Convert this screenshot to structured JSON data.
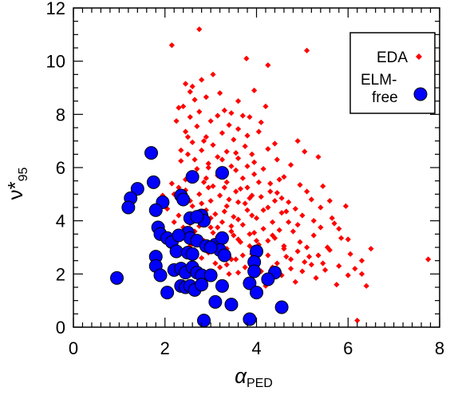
{
  "chart_data": {
    "type": "scatter",
    "xlabel": "α",
    "xlabel_sub": "PED",
    "ylabel": "ν*",
    "ylabel_sub": "95",
    "xlim": [
      0,
      8
    ],
    "ylim": [
      0,
      12
    ],
    "xticks": [
      0,
      2,
      4,
      6,
      8
    ],
    "yticks": [
      0,
      2,
      4,
      6,
      8,
      10,
      12
    ],
    "grid": false,
    "legend_position": "top-right",
    "series": [
      {
        "name": "EDA",
        "marker": "diamond",
        "color": "#ff0000",
        "points": [
          [
            2.15,
            10.6
          ],
          [
            2.75,
            11.2
          ],
          [
            3.78,
            10.1
          ],
          [
            5.1,
            10.4
          ],
          [
            4.25,
            9.85
          ],
          [
            3.05,
            9.5
          ],
          [
            2.45,
            9.15
          ],
          [
            2.6,
            9.05
          ],
          [
            2.55,
            8.85
          ],
          [
            3.2,
            8.8
          ],
          [
            2.9,
            8.65
          ],
          [
            3.6,
            8.5
          ],
          [
            2.3,
            8.25
          ],
          [
            2.4,
            8.3
          ],
          [
            2.75,
            8.1
          ],
          [
            3.45,
            8.05
          ],
          [
            3.15,
            7.95
          ],
          [
            2.55,
            7.9
          ],
          [
            3.85,
            7.9
          ],
          [
            2.25,
            7.75
          ],
          [
            3.0,
            7.75
          ],
          [
            3.4,
            7.6
          ],
          [
            2.7,
            7.55
          ],
          [
            3.6,
            7.45
          ],
          [
            2.45,
            7.35
          ],
          [
            3.25,
            7.3
          ],
          [
            4.05,
            7.35
          ],
          [
            3.8,
            7.2
          ],
          [
            2.9,
            7.15
          ],
          [
            3.5,
            7.05
          ],
          [
            2.6,
            6.95
          ],
          [
            4.9,
            7.0
          ],
          [
            3.05,
            6.85
          ],
          [
            3.75,
            6.8
          ],
          [
            2.8,
            6.65
          ],
          [
            3.35,
            6.6
          ],
          [
            4.25,
            6.7
          ],
          [
            2.5,
            6.5
          ],
          [
            3.9,
            6.5
          ],
          [
            5.05,
            6.6
          ],
          [
            3.15,
            6.4
          ],
          [
            3.6,
            6.35
          ],
          [
            2.35,
            6.25
          ],
          [
            4.45,
            6.3
          ],
          [
            2.95,
            6.15
          ],
          [
            3.45,
            6.05
          ],
          [
            5.35,
            6.4
          ],
          [
            2.7,
            5.95
          ],
          [
            4.15,
            5.95
          ],
          [
            3.25,
            5.85
          ],
          [
            3.95,
            5.75
          ],
          [
            2.55,
            5.7
          ],
          [
            4.6,
            5.65
          ],
          [
            3.7,
            5.6
          ],
          [
            2.85,
            5.45
          ],
          [
            3.35,
            5.45
          ],
          [
            4.3,
            5.4
          ],
          [
            3.05,
            5.3
          ],
          [
            3.8,
            5.25
          ],
          [
            4.95,
            5.35
          ],
          [
            2.45,
            5.15
          ],
          [
            3.55,
            5.1
          ],
          [
            4.45,
            5.05
          ],
          [
            2.75,
            5.0
          ],
          [
            3.2,
            4.95
          ],
          [
            4.1,
            4.9
          ],
          [
            3.9,
            4.95
          ],
          [
            2.35,
            4.8
          ],
          [
            5.2,
            4.8
          ],
          [
            3.0,
            4.75
          ],
          [
            3.6,
            4.7
          ],
          [
            4.7,
            4.7
          ],
          [
            2.6,
            4.55
          ],
          [
            3.35,
            4.55
          ],
          [
            4.25,
            4.5
          ],
          [
            5.4,
            4.5
          ],
          [
            2.9,
            4.4
          ],
          [
            3.8,
            4.4
          ],
          [
            3.1,
            4.25
          ],
          [
            4.55,
            4.3
          ],
          [
            2.5,
            4.15
          ],
          [
            3.5,
            4.15
          ],
          [
            4.0,
            4.1
          ],
          [
            5.0,
            4.2
          ],
          [
            2.75,
            4.0
          ],
          [
            3.25,
            3.95
          ],
          [
            4.35,
            3.95
          ],
          [
            3.7,
            3.85
          ],
          [
            5.7,
            3.9
          ],
          [
            2.4,
            3.75
          ],
          [
            3.0,
            3.75
          ],
          [
            4.15,
            3.7
          ],
          [
            2.65,
            3.6
          ],
          [
            3.45,
            3.6
          ],
          [
            4.8,
            3.6
          ],
          [
            3.85,
            3.5
          ],
          [
            5.25,
            3.45
          ],
          [
            3.15,
            3.4
          ],
          [
            4.4,
            3.35
          ],
          [
            2.85,
            3.25
          ],
          [
            3.65,
            3.2
          ],
          [
            4.95,
            3.2
          ],
          [
            2.55,
            3.05
          ],
          [
            4.05,
            3.1
          ],
          [
            3.35,
            2.95
          ],
          [
            4.6,
            2.95
          ],
          [
            5.6,
            2.9
          ],
          [
            2.95,
            2.8
          ],
          [
            3.9,
            2.75
          ],
          [
            4.25,
            2.7
          ],
          [
            5.15,
            2.65
          ],
          [
            3.55,
            2.55
          ],
          [
            4.75,
            2.55
          ],
          [
            3.1,
            2.4
          ],
          [
            4.45,
            2.4
          ],
          [
            5.45,
            2.4
          ],
          [
            3.75,
            2.25
          ],
          [
            5.8,
            2.3
          ],
          [
            2.7,
            2.15
          ],
          [
            4.1,
            2.1
          ],
          [
            5.0,
            2.1
          ],
          [
            6.05,
            2.75
          ],
          [
            3.4,
            2.0
          ],
          [
            4.55,
            1.95
          ],
          [
            6.15,
            2.2
          ],
          [
            5.3,
            1.85
          ],
          [
            6.3,
            2.0
          ],
          [
            3.85,
            1.75
          ],
          [
            5.75,
            1.6
          ],
          [
            4.2,
            1.55
          ],
          [
            6.5,
            2.95
          ],
          [
            7.75,
            2.55
          ],
          [
            6.4,
            1.55
          ],
          [
            3.95,
            1.2
          ],
          [
            6.2,
            0.25
          ],
          [
            2.8,
            9.3
          ],
          [
            3.3,
            8.15
          ],
          [
            2.65,
            8.55
          ],
          [
            4.1,
            7.7
          ],
          [
            2.85,
            7.0
          ],
          [
            4.4,
            6.9
          ],
          [
            3.55,
            6.55
          ],
          [
            2.95,
            6.0
          ],
          [
            4.75,
            6.1
          ],
          [
            3.65,
            5.2
          ],
          [
            4.05,
            5.45
          ],
          [
            3.4,
            4.8
          ],
          [
            2.8,
            4.65
          ],
          [
            4.65,
            4.35
          ],
          [
            3.6,
            4.05
          ],
          [
            4.25,
            3.25
          ],
          [
            3.05,
            3.1
          ],
          [
            4.9,
            2.85
          ],
          [
            3.7,
            2.7
          ],
          [
            4.35,
            2.25
          ],
          [
            5.55,
            3.0
          ],
          [
            5.2,
            2.35
          ],
          [
            2.5,
            2.65
          ],
          [
            3.2,
            2.25
          ],
          [
            5.85,
            3.35
          ],
          [
            6.0,
            1.95
          ],
          [
            4.85,
            1.7
          ],
          [
            3.3,
            1.6
          ],
          [
            2.9,
            5.6
          ],
          [
            3.95,
            6.2
          ],
          [
            2.2,
            5.0
          ],
          [
            2.35,
            6.65
          ],
          [
            1.95,
            4.95
          ],
          [
            2.05,
            4.45
          ],
          [
            2.2,
            3.95
          ],
          [
            2.3,
            4.2
          ],
          [
            2.15,
            5.4
          ],
          [
            4.5,
            5.55
          ],
          [
            5.1,
            5.1
          ],
          [
            5.45,
            5.3
          ],
          [
            4.7,
            3.95
          ],
          [
            5.95,
            4.55
          ],
          [
            3.5,
            3.45
          ],
          [
            2.6,
            3.4
          ],
          [
            3.85,
            3.05
          ],
          [
            4.15,
            4.4
          ],
          [
            3.3,
            4.35
          ],
          [
            2.75,
            3.8
          ],
          [
            3.95,
            3.55
          ],
          [
            4.6,
            3.05
          ],
          [
            5.35,
            2.7
          ],
          [
            2.95,
            1.95
          ],
          [
            3.6,
            2.05
          ],
          [
            4.3,
            1.95
          ],
          [
            3.45,
            3.8
          ],
          [
            4.85,
            4.45
          ],
          [
            5.65,
            4.1
          ],
          [
            2.45,
            5.55
          ],
          [
            3.15,
            5.7
          ],
          [
            3.8,
            6.05
          ],
          [
            2.65,
            6.3
          ],
          [
            4.3,
            5.1
          ],
          [
            2.85,
            4.25
          ],
          [
            3.05,
            3.55
          ],
          [
            4.5,
            3.65
          ],
          [
            5.8,
            3.7
          ],
          [
            5.25,
            4.0
          ],
          [
            3.3,
            5.25
          ],
          [
            2.55,
            4.75
          ],
          [
            3.75,
            4.65
          ],
          [
            4.0,
            3.25
          ],
          [
            2.7,
            3.2
          ],
          [
            4.75,
            2.2
          ],
          [
            5.5,
            2.15
          ],
          [
            4.0,
            2.5
          ],
          [
            3.45,
            2.55
          ],
          [
            5.1,
            3.0
          ],
          [
            6.3,
            2.5
          ],
          [
            3.0,
            4.1
          ],
          [
            4.4,
            4.75
          ],
          [
            3.85,
            4.85
          ],
          [
            2.4,
            3.55
          ],
          [
            5.6,
            4.75
          ],
          [
            6.0,
            3.3
          ],
          [
            4.9,
            3.85
          ],
          [
            3.25,
            6.3
          ],
          [
            2.5,
            7.15
          ],
          [
            3.7,
            7.95
          ],
          [
            4.2,
            8.3
          ],
          [
            3.95,
            8.9
          ],
          [
            2.95,
            5.25
          ],
          [
            3.55,
            5.9
          ],
          [
            2.3,
            5.25
          ],
          [
            4.55,
            4.85
          ],
          [
            5.4,
            3.75
          ],
          [
            2.8,
            2.6
          ],
          [
            3.35,
            2.35
          ],
          [
            4.65,
            2.65
          ],
          [
            5.05,
            2.45
          ],
          [
            2.55,
            3.9
          ],
          [
            3.15,
            3.75
          ],
          [
            3.9,
            4.2
          ],
          [
            4.35,
            3.45
          ],
          [
            3.6,
            3.3
          ],
          [
            2.9,
            3.05
          ]
        ]
      },
      {
        "name": "ELM-\nfree",
        "marker": "circle",
        "color": "#0000ff",
        "points": [
          [
            1.7,
            6.55
          ],
          [
            1.75,
            5.45
          ],
          [
            1.4,
            5.2
          ],
          [
            2.6,
            5.65
          ],
          [
            3.25,
            5.8
          ],
          [
            1.25,
            4.85
          ],
          [
            1.2,
            4.5
          ],
          [
            1.95,
            4.7
          ],
          [
            1.8,
            4.4
          ],
          [
            2.35,
            4.95
          ],
          [
            2.4,
            4.8
          ],
          [
            2.55,
            4.1
          ],
          [
            2.8,
            4.2
          ],
          [
            2.85,
            4.0
          ],
          [
            1.85,
            3.75
          ],
          [
            1.9,
            3.5
          ],
          [
            2.05,
            3.35
          ],
          [
            2.15,
            3.2
          ],
          [
            2.5,
            3.55
          ],
          [
            2.55,
            3.35
          ],
          [
            2.7,
            3.25
          ],
          [
            2.9,
            3.05
          ],
          [
            3.1,
            3.1
          ],
          [
            3.25,
            3.35
          ],
          [
            1.8,
            2.65
          ],
          [
            2.25,
            2.85
          ],
          [
            2.5,
            2.8
          ],
          [
            2.6,
            2.75
          ],
          [
            3.2,
            2.9
          ],
          [
            3.3,
            2.7
          ],
          [
            4.0,
            2.85
          ],
          [
            3.95,
            2.45
          ],
          [
            1.8,
            2.3
          ],
          [
            1.9,
            1.95
          ],
          [
            2.2,
            2.15
          ],
          [
            2.35,
            2.2
          ],
          [
            2.45,
            2.05
          ],
          [
            2.6,
            2.25
          ],
          [
            2.7,
            2.05
          ],
          [
            2.8,
            1.95
          ],
          [
            3.0,
            1.95
          ],
          [
            3.95,
            2.1
          ],
          [
            4.4,
            2.05
          ],
          [
            0.95,
            1.85
          ],
          [
            2.35,
            1.55
          ],
          [
            2.45,
            1.5
          ],
          [
            2.55,
            1.55
          ],
          [
            2.65,
            1.4
          ],
          [
            2.05,
            1.3
          ],
          [
            2.8,
            1.6
          ],
          [
            3.25,
            1.55
          ],
          [
            3.85,
            1.65
          ],
          [
            4.25,
            1.8
          ],
          [
            4.0,
            1.3
          ],
          [
            3.1,
            0.95
          ],
          [
            3.45,
            0.85
          ],
          [
            4.55,
            0.75
          ],
          [
            2.85,
            0.25
          ],
          [
            3.85,
            0.3
          ],
          [
            2.7,
            4.15
          ],
          [
            3.0,
            3.0
          ],
          [
            2.3,
            3.45
          ]
        ]
      }
    ]
  }
}
